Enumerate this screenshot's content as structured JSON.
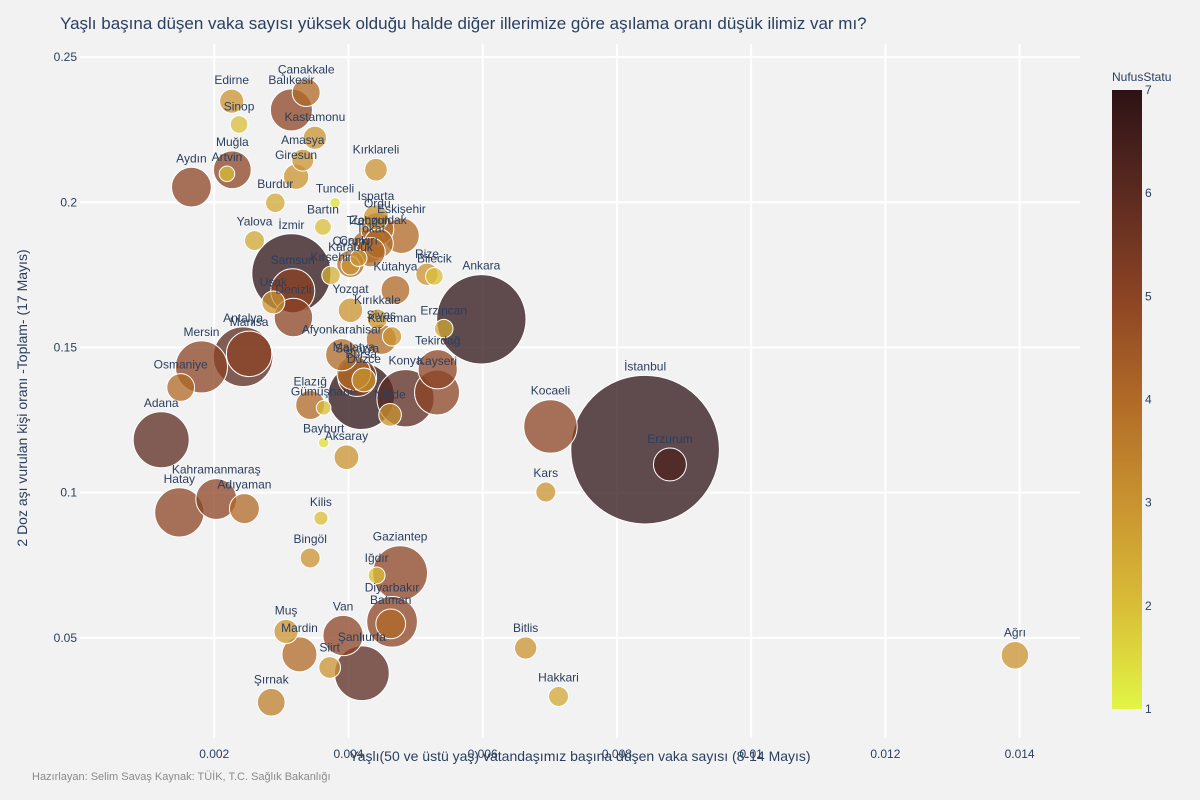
{
  "title": "Yaşlı başına düşen vaka sayısı yüksek olduğu halde diğer illerimize göre aşılama oranı düşük ilimiz var mı?",
  "note": "Hazırlayan: Selim Savaş  Kaynak: TÜİK, T.C. Sağlık Bakanlığı",
  "chart_data": {
    "type": "scatter",
    "xlabel": "Yaşlı(50 ve üstü yaş) vatandaşımız başına düşen vaka sayısı (8-14 Mayıs)",
    "ylabel": "2 Doz aşı vurulan kişi oranı -Toplam- (17 Mayıs)",
    "xlim": [
      0,
      0.0149
    ],
    "ylim": [
      0.0155,
      0.2545
    ],
    "xticks": [
      {
        "v": 0.002,
        "label": "0.002"
      },
      {
        "v": 0.004,
        "label": "0.004"
      },
      {
        "v": 0.006,
        "label": "0.006"
      },
      {
        "v": 0.008,
        "label": "0.008"
      },
      {
        "v": 0.01,
        "label": "0.01"
      },
      {
        "v": 0.012,
        "label": "0.012"
      },
      {
        "v": 0.014,
        "label": "0.014"
      }
    ],
    "yticks": [
      {
        "v": 0.05,
        "label": "0.05"
      },
      {
        "v": 0.1,
        "label": "0.1"
      },
      {
        "v": 0.15,
        "label": "0.15"
      },
      {
        "v": 0.2,
        "label": "0.2"
      },
      {
        "v": 0.25,
        "label": "0.25"
      }
    ],
    "colorbar": {
      "title": "NufusStatu",
      "min": 1,
      "max": 7,
      "ticks": [
        "1",
        "2",
        "3",
        "4",
        "5",
        "6",
        "7"
      ],
      "scale": [
        "#e2f545",
        "#d9bd37",
        "#c99330",
        "#b06a27",
        "#8b4324",
        "#5b2a20",
        "#2d1215"
      ]
    },
    "points": [
      {
        "name": "İstanbul",
        "x": 0.00842,
        "y": 0.1148,
        "c": 7,
        "pop": 15.5
      },
      {
        "name": "Ankara",
        "x": 0.00598,
        "y": 0.1597,
        "c": 7,
        "pop": 5.6
      },
      {
        "name": "İzmir",
        "x": 0.00315,
        "y": 0.1755,
        "c": 7,
        "pop": 4.4
      },
      {
        "name": "Bursa",
        "x": 0.00419,
        "y": 0.1332,
        "c": 7,
        "pop": 3.1
      },
      {
        "name": "Antalya",
        "x": 0.00243,
        "y": 0.1468,
        "c": 6,
        "pop": 2.5
      },
      {
        "name": "Konya",
        "x": 0.00485,
        "y": 0.1325,
        "c": 6,
        "pop": 2.3
      },
      {
        "name": "Adana",
        "x": 0.00121,
        "y": 0.1182,
        "c": 6,
        "pop": 2.2
      },
      {
        "name": "Şanlıurfa",
        "x": 0.0042,
        "y": 0.0378,
        "c": 6,
        "pop": 2.1
      },
      {
        "name": "Gaziantep",
        "x": 0.00477,
        "y": 0.0723,
        "c": 5,
        "pop": 2.1
      },
      {
        "name": "Kocaeli",
        "x": 0.00701,
        "y": 0.1228,
        "c": 5,
        "pop": 2.0
      },
      {
        "name": "Mersin",
        "x": 0.00181,
        "y": 0.1433,
        "c": 5,
        "pop": 1.9
      },
      {
        "name": "Diyarbakır",
        "x": 0.00465,
        "y": 0.0555,
        "c": 5,
        "pop": 1.8
      },
      {
        "name": "Hatay",
        "x": 0.00148,
        "y": 0.0932,
        "c": 5,
        "pop": 1.7
      },
      {
        "name": "Manisa",
        "x": 0.00252,
        "y": 0.1478,
        "c": 5,
        "pop": 1.45
      },
      {
        "name": "Kayseri",
        "x": 0.00532,
        "y": 0.1345,
        "c": 5,
        "pop": 1.42
      },
      {
        "name": "Samsun",
        "x": 0.00317,
        "y": 0.1695,
        "c": 5,
        "pop": 1.36
      },
      {
        "name": "Balıkesir",
        "x": 0.00315,
        "y": 0.2318,
        "c": 5,
        "pop": 1.24
      },
      {
        "name": "Kahramanmaraş",
        "x": 0.00203,
        "y": 0.0978,
        "c": 5,
        "pop": 1.17
      },
      {
        "name": "Van",
        "x": 0.00392,
        "y": 0.0508,
        "c": 5,
        "pop": 1.14
      },
      {
        "name": "Aydın",
        "x": 0.00166,
        "y": 0.2052,
        "c": 5,
        "pop": 1.11
      },
      {
        "name": "Tekirdağ",
        "x": 0.00533,
        "y": 0.1425,
        "c": 5,
        "pop": 1.08
      },
      {
        "name": "Sakarya",
        "x": 0.00413,
        "y": 0.1398,
        "c": 5,
        "pop": 1.06
      },
      {
        "name": "Denizli",
        "x": 0.00318,
        "y": 0.1603,
        "c": 5,
        "pop": 1.04
      },
      {
        "name": "Muğla",
        "x": 0.00227,
        "y": 0.2112,
        "c": 5,
        "pop": 1.0
      },
      {
        "name": "Eskişehir",
        "x": 0.00479,
        "y": 0.1885,
        "c": 4,
        "pop": 0.89
      },
      {
        "name": "Mardin",
        "x": 0.00327,
        "y": 0.0443,
        "c": 4,
        "pop": 0.86
      },
      {
        "name": "Malatya",
        "x": 0.00408,
        "y": 0.1412,
        "c": 4,
        "pop": 0.81
      },
      {
        "name": "Erzurum",
        "x": 0.00879,
        "y": 0.1097,
        "c": 6.3,
        "pop": 0.76
      },
      {
        "name": "Trabzon",
        "x": 0.0043,
        "y": 0.1848,
        "c": 4,
        "pop": 0.81
      },
      {
        "name": "Ordu",
        "x": 0.00443,
        "y": 0.1908,
        "c": 4,
        "pop": 0.76
      },
      {
        "name": "Afyonkarahisar",
        "x": 0.0039,
        "y": 0.1475,
        "c": 4,
        "pop": 0.73
      },
      {
        "name": "Adıyaman",
        "x": 0.00245,
        "y": 0.0945,
        "c": 4,
        "pop": 0.63
      },
      {
        "name": "Batman",
        "x": 0.00463,
        "y": 0.0548,
        "c": 4,
        "pop": 0.62
      },
      {
        "name": "Sivas",
        "x": 0.00449,
        "y": 0.1528,
        "c": 4,
        "pop": 0.64
      },
      {
        "name": "Zonguldak",
        "x": 0.00445,
        "y": 0.1858,
        "c": 4,
        "pop": 0.6
      },
      {
        "name": "Tokat",
        "x": 0.00433,
        "y": 0.1828,
        "c": 4,
        "pop": 0.6
      },
      {
        "name": "Elazığ",
        "x": 0.00343,
        "y": 0.1302,
        "c": 4,
        "pop": 0.59
      },
      {
        "name": "Kütahya",
        "x": 0.0047,
        "y": 0.1698,
        "c": 4,
        "pop": 0.58
      },
      {
        "name": "Çanakkale",
        "x": 0.00337,
        "y": 0.2378,
        "c": 4,
        "pop": 0.55
      },
      {
        "name": "Osmaniye",
        "x": 0.0015,
        "y": 0.1362,
        "c": 4,
        "pop": 0.54
      },
      {
        "name": "Çorum",
        "x": 0.00403,
        "y": 0.1788,
        "c": 4,
        "pop": 0.53
      },
      {
        "name": "Şırnak",
        "x": 0.00285,
        "y": 0.0278,
        "c": 3.5,
        "pop": 0.54
      },
      {
        "name": "Isparta",
        "x": 0.00441,
        "y": 0.1948,
        "c": 3,
        "pop": 0.44
      },
      {
        "name": "Düzce",
        "x": 0.00423,
        "y": 0.1388,
        "c": 3,
        "pop": 0.4
      },
      {
        "name": "Uşak",
        "x": 0.00288,
        "y": 0.1655,
        "c": 3,
        "pop": 0.37
      },
      {
        "name": "Aksaray",
        "x": 0.00397,
        "y": 0.1122,
        "c": 3,
        "pop": 0.43
      },
      {
        "name": "Niğde",
        "x": 0.00462,
        "y": 0.1268,
        "c": 3,
        "pop": 0.36
      },
      {
        "name": "Rize",
        "x": 0.00517,
        "y": 0.1752,
        "c": 3,
        "pop": 0.35
      },
      {
        "name": "Edirne",
        "x": 0.00226,
        "y": 0.2348,
        "c": 3,
        "pop": 0.41
      },
      {
        "name": "Amasya",
        "x": 0.00332,
        "y": 0.2145,
        "c": 3,
        "pop": 0.34
      },
      {
        "name": "Kırıkkale",
        "x": 0.00443,
        "y": 0.1598,
        "c": 3,
        "pop": 0.28
      },
      {
        "name": "Kırklareli",
        "x": 0.00441,
        "y": 0.2112,
        "c": 3,
        "pop": 0.36
      },
      {
        "name": "Yozgat",
        "x": 0.00403,
        "y": 0.1628,
        "c": 3,
        "pop": 0.42
      },
      {
        "name": "Karaman",
        "x": 0.00465,
        "y": 0.1538,
        "c": 3,
        "pop": 0.26
      },
      {
        "name": "Ağrı",
        "x": 0.01393,
        "y": 0.044,
        "c": 3,
        "pop": 0.53
      },
      {
        "name": "Muş",
        "x": 0.00307,
        "y": 0.0522,
        "c": 3,
        "pop": 0.41
      },
      {
        "name": "Siirt",
        "x": 0.00372,
        "y": 0.0398,
        "c": 3,
        "pop": 0.33
      },
      {
        "name": "Bitlis",
        "x": 0.00664,
        "y": 0.0465,
        "c": 3,
        "pop": 0.35
      },
      {
        "name": "Kastamonu",
        "x": 0.0035,
        "y": 0.2222,
        "c": 3,
        "pop": 0.38
      },
      {
        "name": "Karabük",
        "x": 0.00403,
        "y": 0.1782,
        "c": 3,
        "pop": 0.25
      },
      {
        "name": "Giresun",
        "x": 0.00322,
        "y": 0.2088,
        "c": 3,
        "pop": 0.45
      },
      {
        "name": "Bingöl",
        "x": 0.00343,
        "y": 0.0775,
        "c": 3,
        "pop": 0.28
      },
      {
        "name": "Kars",
        "x": 0.00694,
        "y": 0.1002,
        "c": 3,
        "pop": 0.28
      },
      {
        "name": "Erzincan",
        "x": 0.00542,
        "y": 0.1565,
        "c": 2.5,
        "pop": 0.24
      },
      {
        "name": "Burdur",
        "x": 0.00291,
        "y": 0.1998,
        "c": 2.5,
        "pop": 0.27
      },
      {
        "name": "Yalova",
        "x": 0.0026,
        "y": 0.1868,
        "c": 2.5,
        "pop": 0.28
      },
      {
        "name": "Kırşehir",
        "x": 0.00374,
        "y": 0.1748,
        "c": 2.3,
        "pop": 0.24
      },
      {
        "name": "Bilecik",
        "x": 0.00528,
        "y": 0.1745,
        "c": 2,
        "pop": 0.22
      },
      {
        "name": "Bartın",
        "x": 0.00362,
        "y": 0.1915,
        "c": 2,
        "pop": 0.2
      },
      {
        "name": "Hakkari",
        "x": 0.00713,
        "y": 0.0298,
        "c": 2.5,
        "pop": 0.28
      },
      {
        "name": "Iğdır",
        "x": 0.00442,
        "y": 0.0715,
        "c": 2,
        "pop": 0.2
      },
      {
        "name": "Sinop",
        "x": 0.00237,
        "y": 0.2268,
        "c": 2,
        "pop": 0.22
      },
      {
        "name": "Gümüşhane",
        "x": 0.00363,
        "y": 0.1292,
        "c": 2,
        "pop": 0.15
      },
      {
        "name": "Artvin",
        "x": 0.00219,
        "y": 0.2098,
        "c": 2,
        "pop": 0.17
      },
      {
        "name": "Kilis",
        "x": 0.00359,
        "y": 0.0912,
        "c": 2,
        "pop": 0.14
      },
      {
        "name": "Tunceli",
        "x": 0.0038,
        "y": 0.1998,
        "c": 1.4,
        "pop": 0.08
      },
      {
        "name": "Bayburt",
        "x": 0.00363,
        "y": 0.1172,
        "c": 1.4,
        "pop": 0.08
      },
      {
        "name": "Çankırı",
        "x": 0.00415,
        "y": 0.1808,
        "c": 3,
        "pop": 0.2
      }
    ]
  }
}
